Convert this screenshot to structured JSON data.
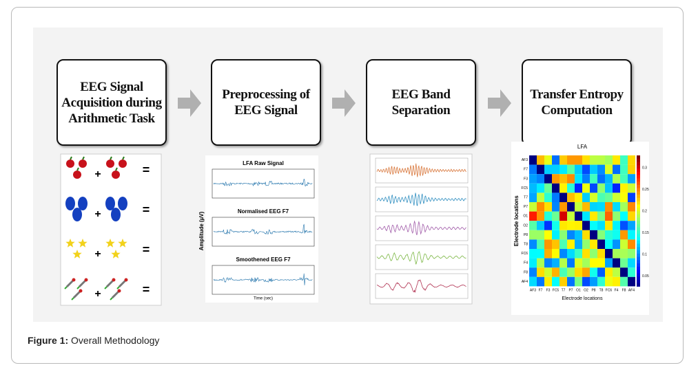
{
  "steps": [
    {
      "title": "EEG Signal Acquisition during Arithmetic Task"
    },
    {
      "title": "Preprocessing of EEG Signal"
    },
    {
      "title": "EEG Band Separation"
    },
    {
      "title": "Transfer Entropy Computation"
    }
  ],
  "figure_caption": {
    "label": "Figure 1:",
    "text": "Overall Methodology"
  },
  "acquisition": {
    "plus": "+",
    "equals": "="
  },
  "preprocessing": {
    "plots": [
      "LFA Raw Signal",
      "Normalised EEG F7",
      "Smoothened EEG F7"
    ],
    "y_label": "Amplitude (µV)",
    "x_label": "Time (sec)"
  },
  "transfer_entropy": {
    "title": "LFA",
    "x_label": "Electrode locations",
    "y_label": "Electrode locations",
    "electrodes": [
      "AF3",
      "F7",
      "F3",
      "FC5",
      "T7",
      "P7",
      "O1",
      "O2",
      "P8",
      "T8",
      "FC6",
      "F4",
      "F8",
      "AF4"
    ],
    "colorbar_ticks": [
      0.3,
      0.25,
      0.2,
      0.15,
      0.1,
      0.05
    ]
  }
}
